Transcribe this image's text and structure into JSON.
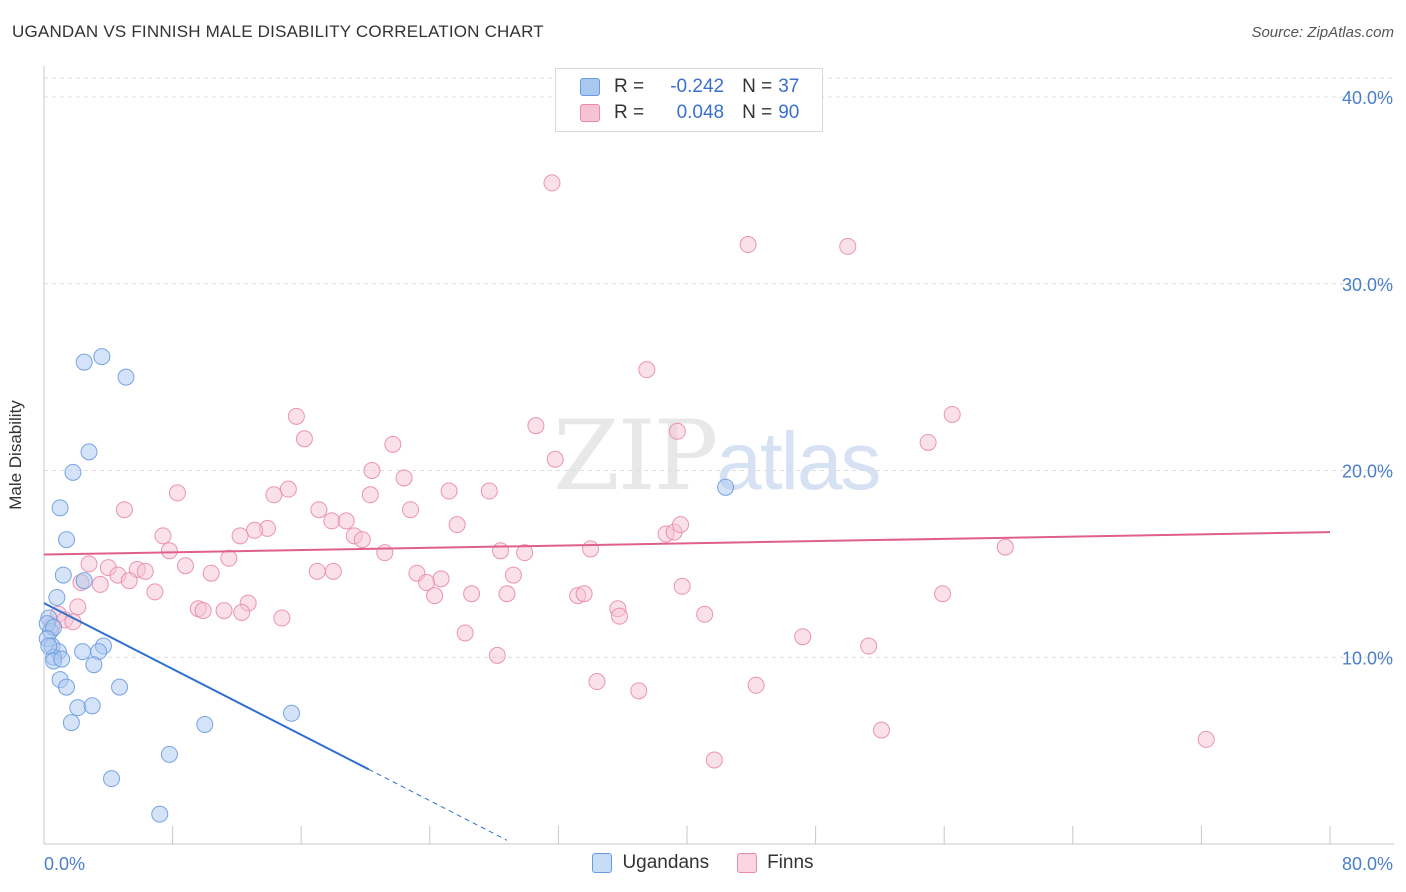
{
  "header": {
    "title": "UGANDAN VS FINNISH MALE DISABILITY CORRELATION CHART",
    "source": "Source: ZipAtlas.com"
  },
  "watermark": {
    "part1": "ZIP",
    "part2": "atlas"
  },
  "legend": {
    "rows": [
      {
        "r_label": "R =",
        "r_value": "-0.242",
        "n_label": "N =",
        "n_value": "37",
        "color": "#a9c8f0",
        "border": "#6a9be0"
      },
      {
        "r_label": "R =",
        "r_value": "0.048",
        "n_label": "N =",
        "n_value": "90",
        "color": "#f6c3d3",
        "border": "#e98aa8"
      }
    ]
  },
  "bottom_legend": [
    {
      "label": "Ugandans",
      "color": "#c7dcf6",
      "border": "#6a9be0"
    },
    {
      "label": "Finns",
      "color": "#fad4e0",
      "border": "#e98aa8"
    }
  ],
  "chart_data": {
    "type": "scatter",
    "title": "UGANDAN VS FINNISH MALE DISABILITY CORRELATION CHART",
    "xlabel": "",
    "ylabel": "Male Disability",
    "xlim": [
      0,
      80
    ],
    "ylim": [
      0,
      40
    ],
    "x_tick_labels": [
      {
        "value": 0,
        "label": "0.0%"
      },
      {
        "value": 80,
        "label": "80.0%"
      }
    ],
    "y_tick_labels": [
      {
        "value": 10,
        "label": "10.0%"
      },
      {
        "value": 20,
        "label": "20.0%"
      },
      {
        "value": 30,
        "label": "30.0%"
      },
      {
        "value": 40,
        "label": "40.0%"
      }
    ],
    "grid": true,
    "series": [
      {
        "name": "Ugandans",
        "color": "#6a9be0",
        "fill": "#a9c8f0",
        "trend": {
          "x0": 0,
          "y0": 12.9,
          "x1": 20.2,
          "y1": 4.0,
          "dash_x1": 28.8,
          "dash_y1": 0.2
        },
        "points": [
          [
            2.5,
            25.8
          ],
          [
            3.6,
            26.1
          ],
          [
            5.1,
            25.0
          ],
          [
            2.8,
            21.0
          ],
          [
            1.8,
            19.9
          ],
          [
            1.0,
            18.0
          ],
          [
            1.4,
            16.3
          ],
          [
            2.5,
            14.1
          ],
          [
            1.2,
            14.4
          ],
          [
            0.8,
            13.2
          ],
          [
            0.3,
            12.1
          ],
          [
            0.4,
            11.4
          ],
          [
            0.2,
            11.8
          ],
          [
            0.6,
            11.6
          ],
          [
            0.2,
            11.0
          ],
          [
            0.5,
            10.6
          ],
          [
            0.9,
            10.3
          ],
          [
            0.6,
            10.0
          ],
          [
            0.3,
            10.6
          ],
          [
            0.6,
            9.8
          ],
          [
            1.1,
            9.9
          ],
          [
            3.7,
            10.6
          ],
          [
            3.4,
            10.3
          ],
          [
            2.4,
            10.3
          ],
          [
            3.1,
            9.6
          ],
          [
            1.0,
            8.8
          ],
          [
            1.4,
            8.4
          ],
          [
            4.7,
            8.4
          ],
          [
            2.1,
            7.3
          ],
          [
            3.0,
            7.4
          ],
          [
            1.7,
            6.5
          ],
          [
            10.0,
            6.4
          ],
          [
            15.4,
            7.0
          ],
          [
            7.8,
            4.8
          ],
          [
            4.2,
            3.5
          ],
          [
            7.2,
            1.6
          ],
          [
            42.4,
            19.1
          ]
        ]
      },
      {
        "name": "Finns",
        "color": "#e98aa8",
        "fill": "#f6c3d3",
        "trend": {
          "x0": 0,
          "y0": 15.5,
          "x1": 80,
          "y1": 16.7
        },
        "points": [
          [
            31.6,
            35.4
          ],
          [
            43.8,
            32.1
          ],
          [
            50.0,
            32.0
          ],
          [
            37.5,
            25.4
          ],
          [
            56.5,
            23.0
          ],
          [
            15.7,
            22.9
          ],
          [
            30.6,
            22.4
          ],
          [
            16.2,
            21.7
          ],
          [
            39.4,
            22.1
          ],
          [
            21.7,
            21.4
          ],
          [
            55.0,
            21.5
          ],
          [
            31.8,
            20.6
          ],
          [
            20.4,
            20.0
          ],
          [
            22.4,
            19.6
          ],
          [
            15.2,
            19.0
          ],
          [
            14.3,
            18.7
          ],
          [
            8.3,
            18.8
          ],
          [
            20.3,
            18.7
          ],
          [
            25.2,
            18.9
          ],
          [
            27.7,
            18.9
          ],
          [
            5.0,
            17.9
          ],
          [
            17.1,
            17.9
          ],
          [
            22.8,
            17.9
          ],
          [
            17.9,
            17.3
          ],
          [
            18.8,
            17.3
          ],
          [
            25.7,
            17.1
          ],
          [
            13.9,
            16.9
          ],
          [
            13.1,
            16.8
          ],
          [
            7.4,
            16.5
          ],
          [
            12.2,
            16.5
          ],
          [
            19.3,
            16.5
          ],
          [
            19.8,
            16.3
          ],
          [
            38.7,
            16.6
          ],
          [
            39.2,
            16.7
          ],
          [
            39.6,
            17.1
          ],
          [
            34.0,
            15.8
          ],
          [
            7.8,
            15.7
          ],
          [
            21.2,
            15.6
          ],
          [
            28.4,
            15.7
          ],
          [
            29.9,
            15.6
          ],
          [
            11.5,
            15.3
          ],
          [
            59.8,
            15.9
          ],
          [
            2.8,
            15.0
          ],
          [
            4.0,
            14.8
          ],
          [
            8.8,
            14.9
          ],
          [
            5.8,
            14.7
          ],
          [
            6.3,
            14.6
          ],
          [
            4.6,
            14.4
          ],
          [
            10.4,
            14.5
          ],
          [
            17.0,
            14.6
          ],
          [
            18.0,
            14.6
          ],
          [
            23.2,
            14.5
          ],
          [
            29.2,
            14.4
          ],
          [
            2.3,
            14.0
          ],
          [
            5.3,
            14.1
          ],
          [
            3.5,
            13.9
          ],
          [
            23.8,
            14.0
          ],
          [
            24.7,
            14.2
          ],
          [
            6.9,
            13.5
          ],
          [
            26.6,
            13.4
          ],
          [
            28.8,
            13.4
          ],
          [
            33.2,
            13.3
          ],
          [
            33.6,
            13.4
          ],
          [
            39.7,
            13.8
          ],
          [
            55.9,
            13.4
          ],
          [
            24.3,
            13.3
          ],
          [
            12.7,
            12.9
          ],
          [
            2.1,
            12.7
          ],
          [
            9.6,
            12.6
          ],
          [
            9.9,
            12.5
          ],
          [
            11.2,
            12.5
          ],
          [
            12.3,
            12.4
          ],
          [
            35.7,
            12.6
          ],
          [
            41.1,
            12.3
          ],
          [
            35.8,
            12.2
          ],
          [
            14.8,
            12.1
          ],
          [
            0.9,
            12.3
          ],
          [
            1.3,
            12.0
          ],
          [
            1.8,
            11.9
          ],
          [
            0.5,
            11.7
          ],
          [
            26.2,
            11.3
          ],
          [
            47.2,
            11.1
          ],
          [
            51.3,
            10.6
          ],
          [
            28.2,
            10.1
          ],
          [
            34.4,
            8.7
          ],
          [
            37.0,
            8.2
          ],
          [
            44.3,
            8.5
          ],
          [
            52.1,
            6.1
          ],
          [
            72.3,
            5.6
          ],
          [
            41.7,
            4.5
          ]
        ]
      }
    ]
  }
}
